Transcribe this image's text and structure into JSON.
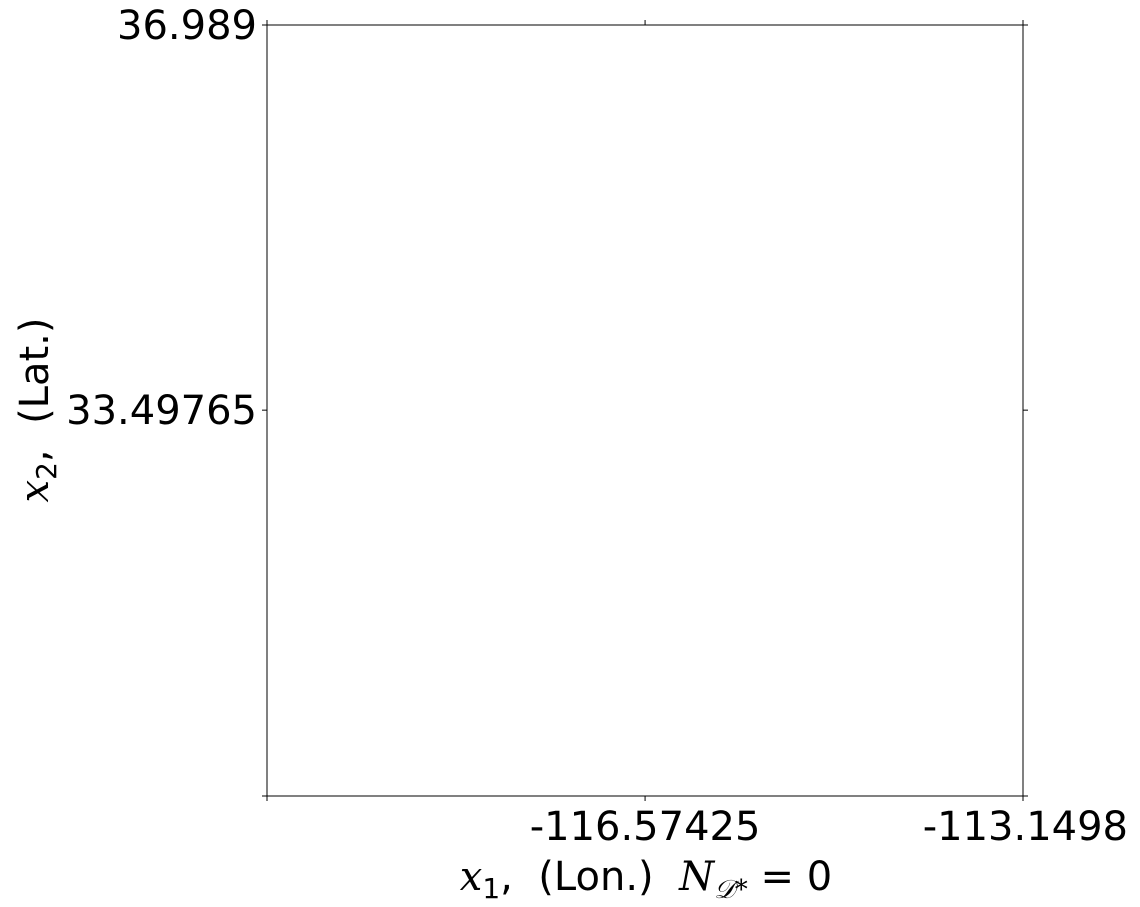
{
  "chart_data": {
    "type": "scatter",
    "title": "",
    "xlabel": {
      "var": "x",
      "sub": "1",
      "text": ",  (Lon.)  ",
      "count_var": "N",
      "count_sub": "𝒟*",
      "count_eq": " = 0"
    },
    "ylabel": {
      "var": "x",
      "sub": "2",
      "text": ",  (Lat.)"
    },
    "xlim": [
      -120.0,
      -113.1498
    ],
    "ylim": [
      30.0,
      36.989
    ],
    "x_ticks": [
      {
        "value": -120.0,
        "label": ""
      },
      {
        "value": -116.57425,
        "label": "-116.57425"
      },
      {
        "value": -113.1498,
        "label": "-113.1498"
      }
    ],
    "y_ticks": [
      {
        "value": 30.0,
        "label": ""
      },
      {
        "value": 33.49765,
        "label": "33.49765"
      },
      {
        "value": 36.989,
        "label": "36.989"
      }
    ],
    "points": [],
    "grid": false,
    "legend": "none"
  }
}
